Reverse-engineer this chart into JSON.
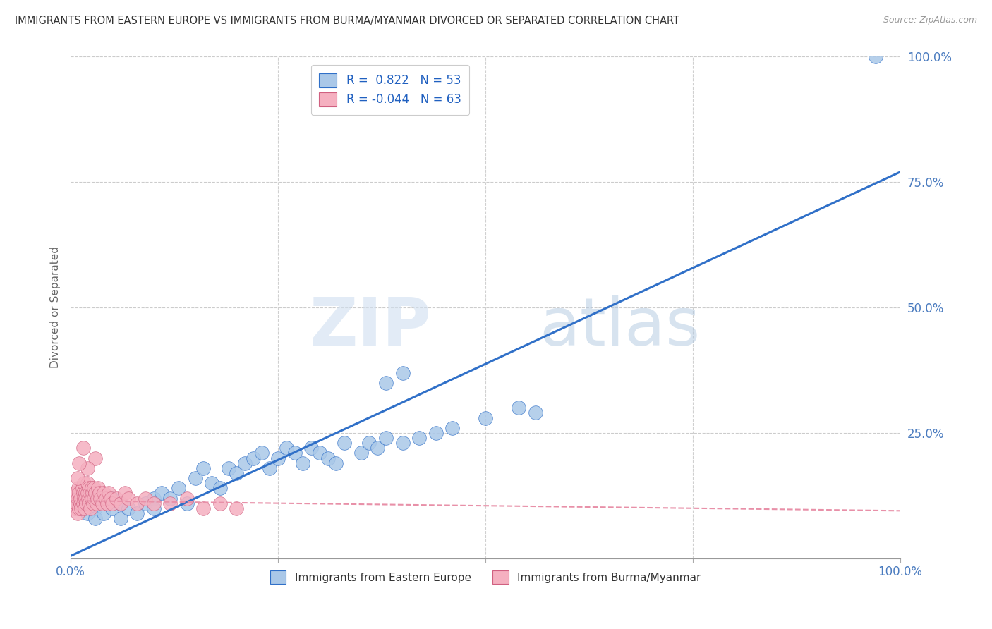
{
  "title": "IMMIGRANTS FROM EASTERN EUROPE VS IMMIGRANTS FROM BURMA/MYANMAR DIVORCED OR SEPARATED CORRELATION CHART",
  "source": "Source: ZipAtlas.com",
  "ylabel": "Divorced or Separated",
  "blue_label": "Immigrants from Eastern Europe",
  "pink_label": "Immigrants from Burma/Myanmar",
  "blue_R": 0.822,
  "blue_N": 53,
  "pink_R": -0.044,
  "pink_N": 63,
  "blue_color": "#aac8e8",
  "pink_color": "#f5b0c0",
  "blue_line_color": "#3070c8",
  "pink_line_color": "#e890a8",
  "watermark_zip": "ZIP",
  "watermark_atlas": "atlas",
  "xlim": [
    0.0,
    1.0
  ],
  "ylim": [
    0.0,
    1.0
  ],
  "yticks": [
    0.0,
    0.25,
    0.5,
    0.75,
    1.0
  ],
  "ytick_labels": [
    "",
    "25.0%",
    "50.0%",
    "75.0%",
    "100.0%"
  ],
  "background_color": "#ffffff",
  "blue_line_x0": 0.0,
  "blue_line_y0": 0.005,
  "blue_line_x1": 1.0,
  "blue_line_y1": 0.77,
  "pink_line_x0": 0.0,
  "pink_line_y0": 0.115,
  "pink_line_x1": 1.0,
  "pink_line_y1": 0.095,
  "blue_scatter_x": [
    0.01,
    0.02,
    0.02,
    0.03,
    0.03,
    0.04,
    0.04,
    0.05,
    0.05,
    0.06,
    0.06,
    0.07,
    0.08,
    0.09,
    0.1,
    0.1,
    0.11,
    0.12,
    0.13,
    0.14,
    0.15,
    0.16,
    0.17,
    0.18,
    0.19,
    0.2,
    0.21,
    0.22,
    0.23,
    0.24,
    0.25,
    0.26,
    0.27,
    0.28,
    0.29,
    0.3,
    0.31,
    0.32,
    0.33,
    0.35,
    0.36,
    0.37,
    0.38,
    0.4,
    0.42,
    0.44,
    0.46,
    0.5,
    0.54,
    0.56,
    0.38,
    0.4,
    0.97
  ],
  "blue_scatter_y": [
    0.11,
    0.09,
    0.12,
    0.1,
    0.08,
    0.09,
    0.11,
    0.1,
    0.12,
    0.08,
    0.11,
    0.1,
    0.09,
    0.11,
    0.12,
    0.1,
    0.13,
    0.12,
    0.14,
    0.11,
    0.16,
    0.18,
    0.15,
    0.14,
    0.18,
    0.17,
    0.19,
    0.2,
    0.21,
    0.18,
    0.2,
    0.22,
    0.21,
    0.19,
    0.22,
    0.21,
    0.2,
    0.19,
    0.23,
    0.21,
    0.23,
    0.22,
    0.24,
    0.23,
    0.24,
    0.25,
    0.26,
    0.28,
    0.3,
    0.29,
    0.35,
    0.37,
    1.0
  ],
  "pink_scatter_x": [
    0.005,
    0.005,
    0.007,
    0.008,
    0.008,
    0.009,
    0.01,
    0.01,
    0.012,
    0.012,
    0.013,
    0.014,
    0.015,
    0.015,
    0.016,
    0.016,
    0.017,
    0.018,
    0.018,
    0.019,
    0.02,
    0.02,
    0.021,
    0.022,
    0.022,
    0.023,
    0.024,
    0.025,
    0.025,
    0.026,
    0.027,
    0.028,
    0.028,
    0.03,
    0.031,
    0.032,
    0.033,
    0.035,
    0.036,
    0.038,
    0.04,
    0.042,
    0.044,
    0.046,
    0.048,
    0.05,
    0.055,
    0.06,
    0.065,
    0.07,
    0.08,
    0.09,
    0.1,
    0.12,
    0.14,
    0.16,
    0.18,
    0.2,
    0.03,
    0.02,
    0.015,
    0.01,
    0.008
  ],
  "pink_scatter_y": [
    0.1,
    0.13,
    0.11,
    0.12,
    0.09,
    0.14,
    0.1,
    0.13,
    0.11,
    0.12,
    0.1,
    0.14,
    0.13,
    0.11,
    0.12,
    0.15,
    0.1,
    0.13,
    0.12,
    0.11,
    0.13,
    0.15,
    0.12,
    0.14,
    0.11,
    0.13,
    0.1,
    0.14,
    0.12,
    0.13,
    0.11,
    0.12,
    0.14,
    0.13,
    0.11,
    0.12,
    0.14,
    0.13,
    0.12,
    0.11,
    0.13,
    0.12,
    0.11,
    0.13,
    0.12,
    0.11,
    0.12,
    0.11,
    0.13,
    0.12,
    0.11,
    0.12,
    0.11,
    0.11,
    0.12,
    0.1,
    0.11,
    0.1,
    0.2,
    0.18,
    0.22,
    0.19,
    0.16
  ]
}
